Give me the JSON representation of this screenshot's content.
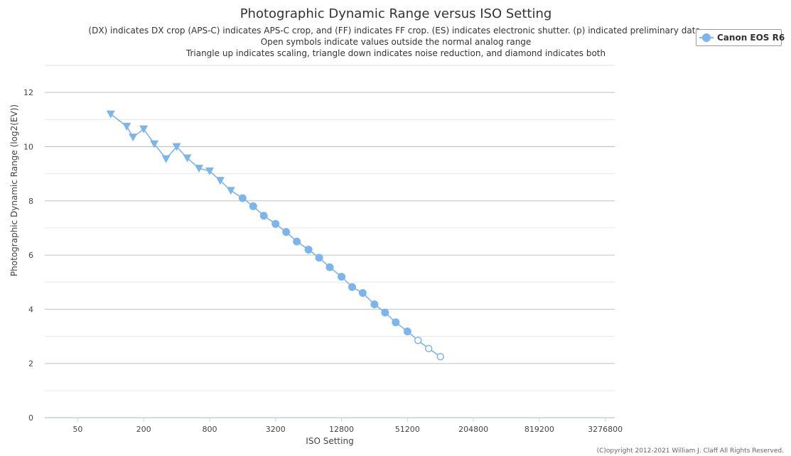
{
  "chart_data": {
    "type": "line",
    "title": "Photographic Dynamic Range versus ISO Setting",
    "subtitle_lines": [
      "(DX) indicates DX crop (APS-C) indicates APS-C crop, and (FF) indicates FF crop. (ES) indicates electronic shutter. (p) indicated preliminary data.",
      "Open symbols indicate values outside the normal analog range",
      "Triangle up indicates scaling, triangle down indicates noise reduction, and diamond indicates both"
    ],
    "xlabel": "ISO Setting",
    "ylabel": "Photographic Dynamic Range (log2(EV))",
    "x_scale": "log2",
    "x_ticks": [
      "50",
      "200",
      "800",
      "3200",
      "12800",
      "51200",
      "204800",
      "819200",
      "3276800"
    ],
    "x_tick_values": [
      50,
      200,
      800,
      3200,
      12800,
      51200,
      204800,
      819200,
      3276800
    ],
    "xlim": [
      25,
      4000000
    ],
    "y_ticks": [
      "0",
      "2",
      "4",
      "6",
      "8",
      "10",
      "12"
    ],
    "ylim": [
      0,
      13
    ],
    "grid": true,
    "legend_position": "top-right",
    "series": [
      {
        "name": "Canon EOS R6",
        "color": "#7cb5ec",
        "points": [
          {
            "x": 100,
            "y": 11.2,
            "marker": "triangle-down"
          },
          {
            "x": 140,
            "y": 10.75,
            "marker": "triangle-down"
          },
          {
            "x": 160,
            "y": 10.35,
            "marker": "triangle-down"
          },
          {
            "x": 200,
            "y": 10.65,
            "marker": "triangle-down"
          },
          {
            "x": 250,
            "y": 10.1,
            "marker": "triangle-down"
          },
          {
            "x": 320,
            "y": 9.55,
            "marker": "triangle-down"
          },
          {
            "x": 400,
            "y": 10.0,
            "marker": "triangle-down"
          },
          {
            "x": 500,
            "y": 9.58,
            "marker": "triangle-down"
          },
          {
            "x": 640,
            "y": 9.2,
            "marker": "triangle-down"
          },
          {
            "x": 800,
            "y": 9.1,
            "marker": "triangle-down"
          },
          {
            "x": 1000,
            "y": 8.75,
            "marker": "triangle-down"
          },
          {
            "x": 1250,
            "y": 8.38,
            "marker": "triangle-down"
          },
          {
            "x": 1600,
            "y": 8.1,
            "marker": "circle"
          },
          {
            "x": 2000,
            "y": 7.8,
            "marker": "circle"
          },
          {
            "x": 2500,
            "y": 7.45,
            "marker": "circle"
          },
          {
            "x": 3200,
            "y": 7.15,
            "marker": "circle"
          },
          {
            "x": 4000,
            "y": 6.85,
            "marker": "circle"
          },
          {
            "x": 5000,
            "y": 6.5,
            "marker": "circle"
          },
          {
            "x": 6400,
            "y": 6.2,
            "marker": "circle"
          },
          {
            "x": 8000,
            "y": 5.9,
            "marker": "circle"
          },
          {
            "x": 10000,
            "y": 5.55,
            "marker": "circle"
          },
          {
            "x": 12800,
            "y": 5.2,
            "marker": "circle"
          },
          {
            "x": 16000,
            "y": 4.82,
            "marker": "circle"
          },
          {
            "x": 20000,
            "y": 4.6,
            "marker": "circle"
          },
          {
            "x": 25600,
            "y": 4.18,
            "marker": "circle"
          },
          {
            "x": 32000,
            "y": 3.88,
            "marker": "circle"
          },
          {
            "x": 40000,
            "y": 3.52,
            "marker": "circle"
          },
          {
            "x": 51200,
            "y": 3.18,
            "marker": "circle"
          },
          {
            "x": 64000,
            "y": 2.85,
            "marker": "open-circle"
          },
          {
            "x": 80000,
            "y": 2.55,
            "marker": "open-circle"
          },
          {
            "x": 102400,
            "y": 2.25,
            "marker": "open-circle"
          }
        ]
      }
    ]
  },
  "credits": "(C)opyright 2012-2021 William J. Claff All Rights Reserved."
}
